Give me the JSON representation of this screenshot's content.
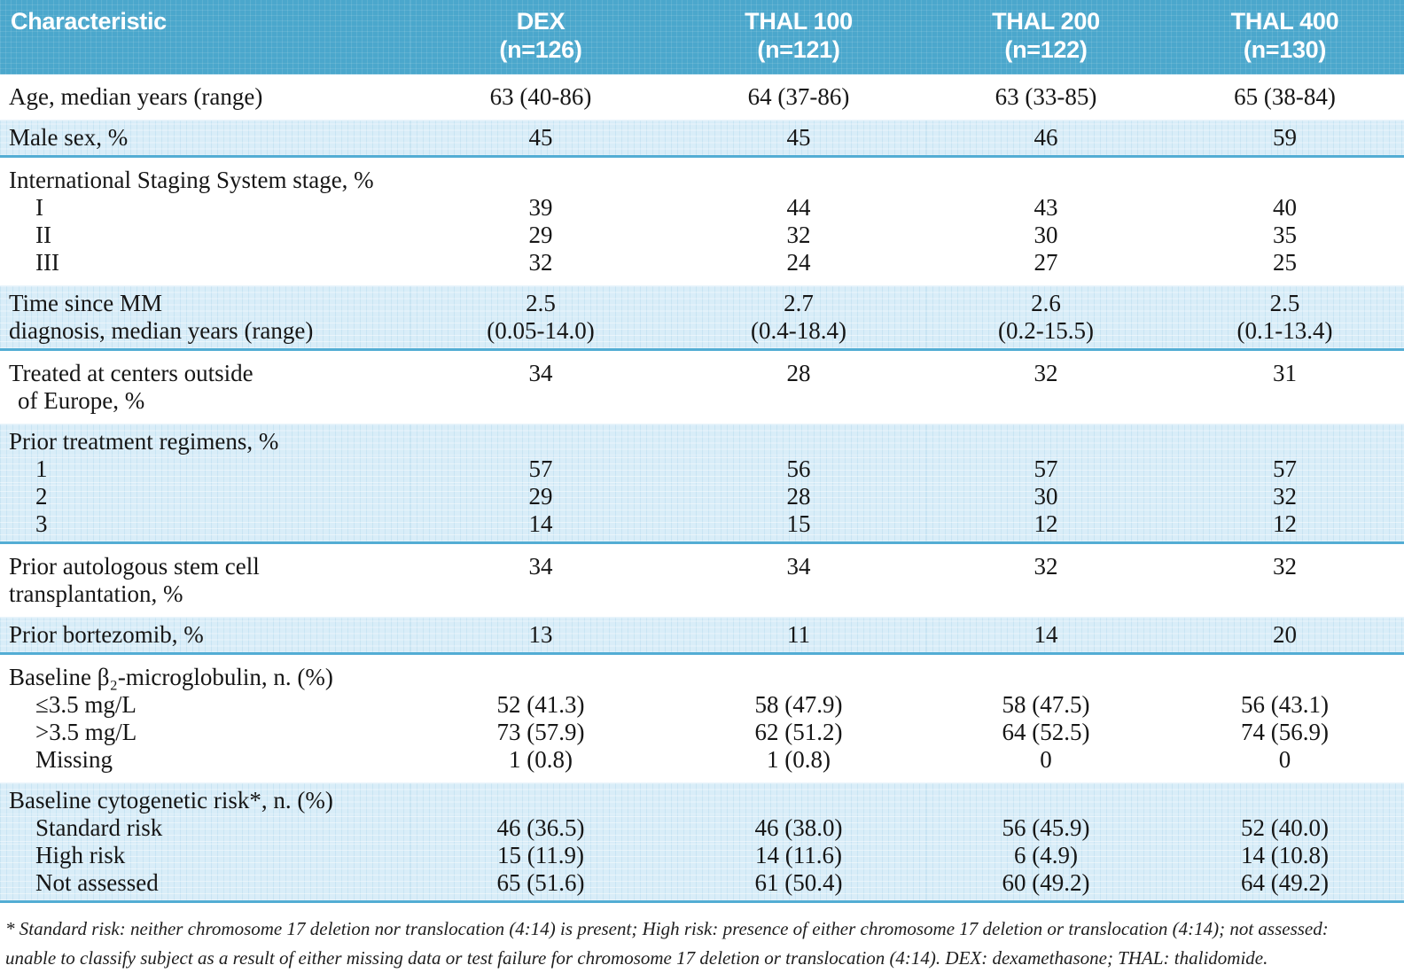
{
  "table": {
    "header": {
      "characteristic": "Characteristic",
      "groups": [
        {
          "name": "DEX",
          "n": "(n=126)"
        },
        {
          "name": "THAL 100",
          "n": "(n=121)"
        },
        {
          "name": "THAL 200",
          "n": "(n=122)"
        },
        {
          "name": "THAL 400",
          "n": "(n=130)"
        }
      ]
    },
    "sections": [
      {
        "shaded": false,
        "rows": [
          {
            "label": "Age, median years (range)",
            "indent": 0,
            "values": [
              "63 (40-86)",
              "64 (37-86)",
              "63 (33-85)",
              "65 (38-84)"
            ]
          }
        ]
      },
      {
        "shaded": true,
        "rows": [
          {
            "label": "Male sex, %",
            "indent": 0,
            "values": [
              "45",
              "45",
              "46",
              "59"
            ]
          }
        ]
      },
      {
        "shaded": false,
        "rows": [
          {
            "label": "International Staging System stage, %",
            "indent": 0,
            "values": [
              "",
              "",
              "",
              ""
            ]
          },
          {
            "label": "I",
            "indent": 1,
            "values": [
              "39",
              "44",
              "43",
              "40"
            ]
          },
          {
            "label": "II",
            "indent": 1,
            "values": [
              "29",
              "32",
              "30",
              "35"
            ]
          },
          {
            "label": "III",
            "indent": 1,
            "values": [
              "32",
              "24",
              "27",
              "25"
            ]
          }
        ]
      },
      {
        "shaded": true,
        "rows": [
          {
            "label": "Time since MM",
            "indent": 0,
            "values": [
              "2.5",
              "2.7",
              "2.6",
              "2.5"
            ]
          },
          {
            "label": "diagnosis, median years (range)",
            "indent": 0,
            "values": [
              "(0.05-14.0)",
              "(0.4-18.4)",
              "(0.2-15.5)",
              "(0.1-13.4)"
            ]
          }
        ]
      },
      {
        "shaded": false,
        "rows": [
          {
            "label": "Treated at centers outside",
            "indent": 0,
            "values": [
              "34",
              "28",
              "32",
              "31"
            ]
          },
          {
            "label": "of Europe, %",
            "indent": 2,
            "values": [
              "",
              "",
              "",
              ""
            ]
          }
        ]
      },
      {
        "shaded": true,
        "rows": [
          {
            "label": "Prior treatment regimens, %",
            "indent": 0,
            "values": [
              "",
              "",
              "",
              ""
            ]
          },
          {
            "label": "1",
            "indent": 1,
            "values": [
              "57",
              "56",
              "57",
              "57"
            ]
          },
          {
            "label": "2",
            "indent": 1,
            "values": [
              "29",
              "28",
              "30",
              "32"
            ]
          },
          {
            "label": "3",
            "indent": 1,
            "values": [
              "14",
              "15",
              "12",
              "12"
            ]
          }
        ]
      },
      {
        "shaded": false,
        "rows": [
          {
            "label": "Prior autologous stem cell",
            "indent": 0,
            "values": [
              "34",
              "34",
              "32",
              "32"
            ]
          },
          {
            "label": "transplantation, %",
            "indent": 0,
            "values": [
              "",
              "",
              "",
              ""
            ]
          }
        ]
      },
      {
        "shaded": true,
        "rows": [
          {
            "label": "Prior bortezomib, %",
            "indent": 0,
            "values": [
              "13",
              "11",
              "14",
              "20"
            ]
          }
        ]
      },
      {
        "shaded": false,
        "rows": [
          {
            "label": "Baseline β₂-microglobulin, n. (%)",
            "indent": 0,
            "values": [
              "",
              "",
              "",
              ""
            ]
          },
          {
            "label": "≤3.5 mg/L",
            "indent": 1,
            "values": [
              "52 (41.3)",
              "58 (47.9)",
              "58 (47.5)",
              "56 (43.1)"
            ]
          },
          {
            "label": ">3.5 mg/L",
            "indent": 1,
            "values": [
              "73 (57.9)",
              "62 (51.2)",
              "64 (52.5)",
              "74 (56.9)"
            ]
          },
          {
            "label": "Missing",
            "indent": 1,
            "values": [
              "1 (0.8)",
              "1 (0.8)",
              "0",
              "0"
            ]
          }
        ]
      },
      {
        "shaded": true,
        "rows": [
          {
            "label": "Baseline cytogenetic risk*, n. (%)",
            "indent": 0,
            "values": [
              "",
              "",
              "",
              ""
            ]
          },
          {
            "label": "Standard risk",
            "indent": 1,
            "values": [
              "46 (36.5)",
              "46 (38.0)",
              "56 (45.9)",
              "52 (40.0)"
            ]
          },
          {
            "label": "High risk",
            "indent": 1,
            "values": [
              "15 (11.9)",
              "14 (11.6)",
              "6 (4.9)",
              "14 (10.8)"
            ]
          },
          {
            "label": "Not assessed",
            "indent": 1,
            "values": [
              "65 (51.6)",
              "61 (50.4)",
              "60 (49.2)",
              "64 (49.2)"
            ]
          }
        ]
      }
    ],
    "footnote": {
      "lines": [
        "* Standard risk: neither chromosome 17 deletion nor translocation (4:14) is present; High risk: presence of either chromosome 17 deletion or translocation (4:14); not assessed:",
        "unable to classify subject as a result of either missing data or test failure for chromosome 17 deletion or translocation (4:14). DEX: dexamethasone; THAL: thalidomide."
      ]
    }
  }
}
